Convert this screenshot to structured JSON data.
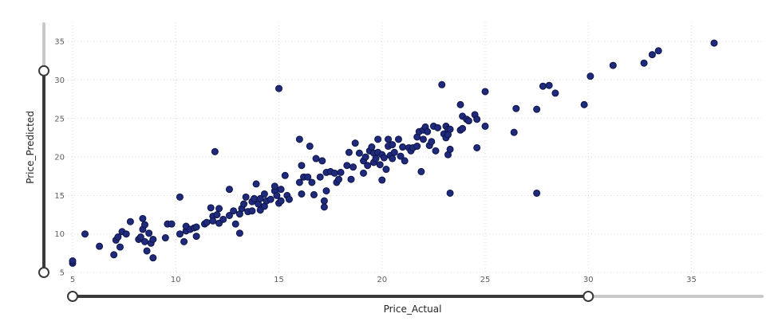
{
  "chart_data": {
    "type": "scatter",
    "title": "",
    "xlabel": "Price_Actual",
    "ylabel": "Price_Predicted",
    "xlim": [
      5,
      38.5
    ],
    "ylim": [
      5,
      37.5
    ],
    "xticks": [
      5,
      10,
      15,
      20,
      25,
      30,
      35
    ],
    "yticks": [
      5,
      10,
      15,
      20,
      25,
      30,
      35
    ],
    "grid": true,
    "legend": "none",
    "marker_color": "#1f2a7c",
    "x_slider_range": [
      5,
      30
    ],
    "y_slider_range": [
      5,
      31.2
    ],
    "points": [
      [
        5.0,
        6.2
      ],
      [
        5.0,
        6.5
      ],
      [
        5.6,
        10.0
      ],
      [
        6.3,
        8.4
      ],
      [
        7.0,
        7.3
      ],
      [
        7.1,
        9.2
      ],
      [
        7.2,
        9.6
      ],
      [
        7.3,
        8.3
      ],
      [
        7.4,
        10.3
      ],
      [
        7.6,
        10.0
      ],
      [
        7.8,
        11.6
      ],
      [
        8.2,
        9.3
      ],
      [
        8.3,
        9.6
      ],
      [
        8.4,
        10.6
      ],
      [
        8.4,
        12.0
      ],
      [
        8.5,
        11.2
      ],
      [
        8.5,
        9.0
      ],
      [
        8.6,
        7.8
      ],
      [
        8.7,
        10.1
      ],
      [
        8.8,
        8.8
      ],
      [
        8.9,
        9.3
      ],
      [
        8.9,
        6.9
      ],
      [
        9.5,
        9.5
      ],
      [
        9.6,
        11.3
      ],
      [
        9.8,
        11.3
      ],
      [
        10.2,
        10.0
      ],
      [
        10.2,
        14.8
      ],
      [
        10.4,
        9.0
      ],
      [
        10.5,
        10.4
      ],
      [
        10.5,
        11.0
      ],
      [
        10.7,
        10.6
      ],
      [
        10.9,
        10.8
      ],
      [
        11.0,
        10.9
      ],
      [
        11.0,
        9.7
      ],
      [
        11.4,
        11.3
      ],
      [
        11.5,
        11.5
      ],
      [
        11.7,
        13.4
      ],
      [
        11.8,
        12.3
      ],
      [
        11.8,
        11.7
      ],
      [
        11.9,
        20.7
      ],
      [
        12.0,
        12.5
      ],
      [
        12.1,
        13.3
      ],
      [
        12.1,
        11.4
      ],
      [
        12.3,
        11.9
      ],
      [
        12.6,
        12.4
      ],
      [
        12.6,
        15.8
      ],
      [
        12.8,
        13.0
      ],
      [
        12.9,
        11.3
      ],
      [
        13.1,
        12.6
      ],
      [
        13.1,
        10.1
      ],
      [
        13.2,
        13.3
      ],
      [
        13.3,
        13.9
      ],
      [
        13.4,
        14.8
      ],
      [
        13.5,
        12.9
      ],
      [
        13.7,
        14.2
      ],
      [
        13.7,
        13.0
      ],
      [
        13.8,
        14.6
      ],
      [
        13.9,
        16.5
      ],
      [
        14.0,
        13.9
      ],
      [
        14.1,
        14.6
      ],
      [
        14.1,
        13.1
      ],
      [
        14.3,
        13.6
      ],
      [
        14.3,
        15.2
      ],
      [
        14.4,
        14.3
      ],
      [
        14.6,
        14.5
      ],
      [
        14.8,
        15.6
      ],
      [
        14.8,
        16.2
      ],
      [
        14.9,
        15.0
      ],
      [
        15.0,
        14.0
      ],
      [
        15.0,
        28.9
      ],
      [
        15.1,
        14.3
      ],
      [
        15.1,
        15.8
      ],
      [
        15.3,
        17.6
      ],
      [
        15.4,
        15.0
      ],
      [
        15.5,
        14.5
      ],
      [
        16.0,
        16.7
      ],
      [
        16.0,
        22.3
      ],
      [
        16.1,
        15.2
      ],
      [
        16.1,
        18.9
      ],
      [
        16.2,
        17.4
      ],
      [
        16.4,
        17.4
      ],
      [
        16.5,
        21.4
      ],
      [
        16.6,
        16.7
      ],
      [
        16.7,
        15.1
      ],
      [
        16.8,
        19.8
      ],
      [
        17.0,
        17.4
      ],
      [
        17.1,
        19.5
      ],
      [
        17.2,
        14.3
      ],
      [
        17.2,
        13.5
      ],
      [
        17.3,
        15.6
      ],
      [
        17.3,
        18.0
      ],
      [
        17.5,
        18.1
      ],
      [
        17.7,
        17.9
      ],
      [
        17.8,
        16.7
      ],
      [
        17.9,
        17.1
      ],
      [
        18.0,
        18.0
      ],
      [
        18.3,
        18.9
      ],
      [
        18.4,
        20.6
      ],
      [
        18.5,
        17.1
      ],
      [
        18.6,
        18.7
      ],
      [
        18.7,
        21.8
      ],
      [
        18.9,
        20.5
      ],
      [
        19.1,
        19.5
      ],
      [
        19.1,
        17.9
      ],
      [
        19.2,
        20.0
      ],
      [
        19.3,
        18.9
      ],
      [
        19.4,
        20.8
      ],
      [
        19.5,
        21.3
      ],
      [
        19.6,
        20.5
      ],
      [
        19.6,
        19.3
      ],
      [
        19.7,
        19.8
      ],
      [
        19.8,
        20.6
      ],
      [
        19.8,
        22.3
      ],
      [
        19.9,
        19.0
      ],
      [
        20.0,
        20.3
      ],
      [
        20.0,
        17.0
      ],
      [
        20.1,
        19.9
      ],
      [
        20.2,
        18.4
      ],
      [
        20.3,
        21.4
      ],
      [
        20.3,
        22.3
      ],
      [
        20.4,
        20.2
      ],
      [
        20.5,
        21.6
      ],
      [
        20.5,
        19.8
      ],
      [
        20.6,
        20.6
      ],
      [
        20.8,
        22.3
      ],
      [
        20.9,
        20.1
      ],
      [
        21.0,
        21.3
      ],
      [
        21.1,
        19.5
      ],
      [
        21.3,
        21.2
      ],
      [
        21.4,
        20.8
      ],
      [
        21.5,
        21.2
      ],
      [
        21.7,
        22.6
      ],
      [
        21.7,
        21.4
      ],
      [
        21.8,
        23.3
      ],
      [
        21.9,
        18.1
      ],
      [
        22.0,
        23.5
      ],
      [
        22.0,
        22.3
      ],
      [
        22.1,
        23.9
      ],
      [
        22.2,
        23.3
      ],
      [
        22.3,
        21.5
      ],
      [
        22.4,
        22.0
      ],
      [
        22.5,
        24.0
      ],
      [
        22.6,
        20.8
      ],
      [
        22.7,
        23.8
      ],
      [
        22.9,
        29.4
      ],
      [
        23.0,
        23.0
      ],
      [
        23.1,
        24.0
      ],
      [
        23.1,
        22.5
      ],
      [
        23.2,
        23.6
      ],
      [
        23.2,
        22.9
      ],
      [
        23.2,
        20.3
      ],
      [
        23.3,
        15.3
      ],
      [
        23.3,
        21.0
      ],
      [
        23.3,
        23.6
      ],
      [
        23.8,
        26.8
      ],
      [
        23.8,
        23.5
      ],
      [
        23.9,
        23.7
      ],
      [
        23.9,
        25.3
      ],
      [
        24.1,
        24.9
      ],
      [
        24.2,
        24.7
      ],
      [
        24.5,
        25.5
      ],
      [
        24.6,
        24.9
      ],
      [
        24.6,
        21.2
      ],
      [
        25.0,
        28.5
      ],
      [
        25.0,
        24.0
      ],
      [
        26.4,
        23.2
      ],
      [
        26.5,
        26.3
      ],
      [
        27.5,
        15.3
      ],
      [
        27.5,
        26.2
      ],
      [
        27.8,
        29.2
      ],
      [
        28.1,
        29.3
      ],
      [
        28.4,
        28.3
      ],
      [
        29.8,
        26.8
      ],
      [
        30.1,
        30.5
      ],
      [
        31.2,
        31.9
      ],
      [
        32.7,
        32.2
      ],
      [
        33.1,
        33.3
      ],
      [
        33.4,
        33.8
      ],
      [
        36.1,
        34.8
      ]
    ]
  }
}
